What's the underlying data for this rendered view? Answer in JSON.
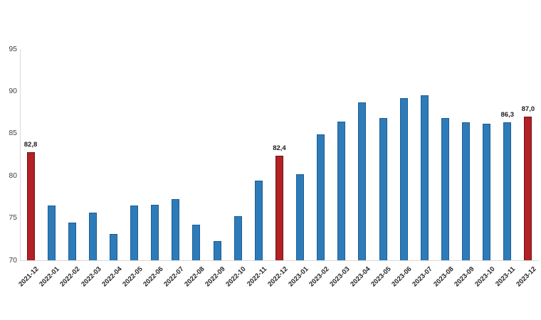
{
  "chart_data": {
    "type": "bar",
    "title": "",
    "xlabel": "",
    "ylabel": "",
    "ylim": [
      70,
      95
    ],
    "yticks": [
      70,
      75,
      80,
      85,
      90,
      95
    ],
    "grid": false,
    "legend": false,
    "decimal_separator": ",",
    "categories": [
      "2021-12",
      "2022-01",
      "2022-02",
      "2022-03",
      "2022-04",
      "2022-05",
      "2022-06",
      "2022-07",
      "2022-08",
      "2022-09",
      "2022-10",
      "2022-11",
      "2022-12",
      "2023-01",
      "2023-02",
      "2023-03",
      "2023-04",
      "2023-05",
      "2023-06",
      "2023-07",
      "2023-08",
      "2023-09",
      "2023-10",
      "2023-11",
      "2023-12"
    ],
    "values": [
      82.8,
      76.5,
      74.5,
      75.6,
      73.1,
      76.5,
      76.6,
      77.2,
      74.2,
      72.3,
      75.2,
      79.4,
      82.4,
      80.2,
      84.9,
      86.4,
      88.7,
      86.8,
      89.2,
      89.5,
      86.8,
      86.3,
      86.2,
      86.3,
      87.0
    ],
    "point_labels": [
      "82,8",
      null,
      null,
      null,
      null,
      null,
      null,
      null,
      null,
      null,
      null,
      null,
      "82,4",
      null,
      null,
      null,
      null,
      null,
      null,
      null,
      null,
      null,
      null,
      "86,3",
      "87,0"
    ],
    "highlighted": [
      true,
      false,
      false,
      false,
      false,
      false,
      false,
      false,
      false,
      false,
      false,
      false,
      true,
      false,
      false,
      false,
      false,
      false,
      false,
      false,
      false,
      false,
      false,
      false,
      true
    ],
    "colors": {
      "bar_fill": "#2e7bb9",
      "bar_border": "#1d5d93",
      "highlight_fill": "#b32025",
      "highlight_border": "#70131a",
      "axis_line": "#d9d9d9",
      "ytick_text": "#3f3f3f",
      "xtick_text": "#262626",
      "value_label_text": "#1a1a1a"
    }
  }
}
